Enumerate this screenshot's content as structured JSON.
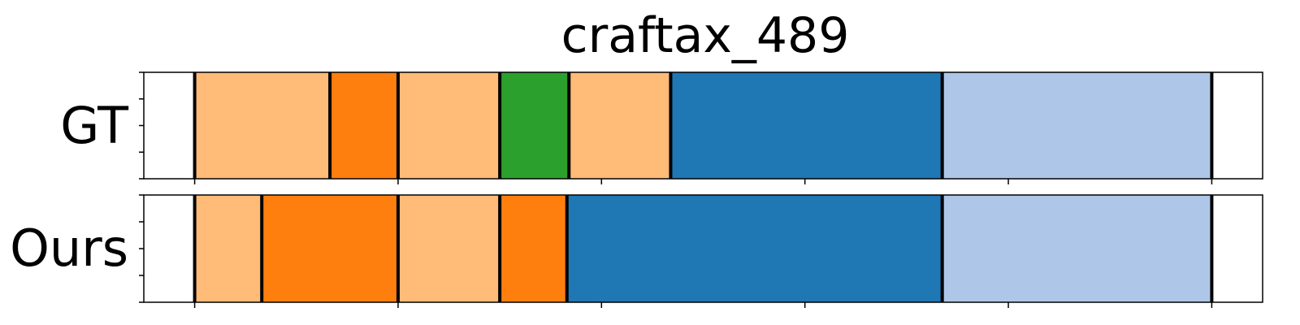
{
  "chart_data": {
    "type": "segmentation-bars",
    "title": "craftax_489",
    "xlim": [
      0,
      1100
    ],
    "rows": [
      {
        "label": "GT",
        "segments": [
          {
            "start": 50,
            "end": 183,
            "color": "#ffbb78"
          },
          {
            "start": 183,
            "end": 250,
            "color": "#ff7f0e"
          },
          {
            "start": 250,
            "end": 350,
            "color": "#ffbb78"
          },
          {
            "start": 350,
            "end": 418,
            "color": "#2ca02c"
          },
          {
            "start": 418,
            "end": 518,
            "color": "#ffbb78"
          },
          {
            "start": 518,
            "end": 785,
            "color": "#1f77b4"
          },
          {
            "start": 785,
            "end": 1050,
            "color": "#aec7e8"
          }
        ]
      },
      {
        "label": "Ours",
        "segments": [
          {
            "start": 50,
            "end": 116,
            "color": "#ffbb78"
          },
          {
            "start": 116,
            "end": 250,
            "color": "#ff7f0e"
          },
          {
            "start": 250,
            "end": 350,
            "color": "#ffbb78"
          },
          {
            "start": 350,
            "end": 416,
            "color": "#ff7f0e"
          },
          {
            "start": 416,
            "end": 785,
            "color": "#1f77b4"
          },
          {
            "start": 785,
            "end": 1050,
            "color": "#aec7e8"
          }
        ]
      }
    ],
    "x_ticks": [
      50,
      250,
      450,
      650,
      850,
      1050
    ],
    "y_ticks_per_row": 5,
    "grid": false,
    "legend": "none"
  }
}
